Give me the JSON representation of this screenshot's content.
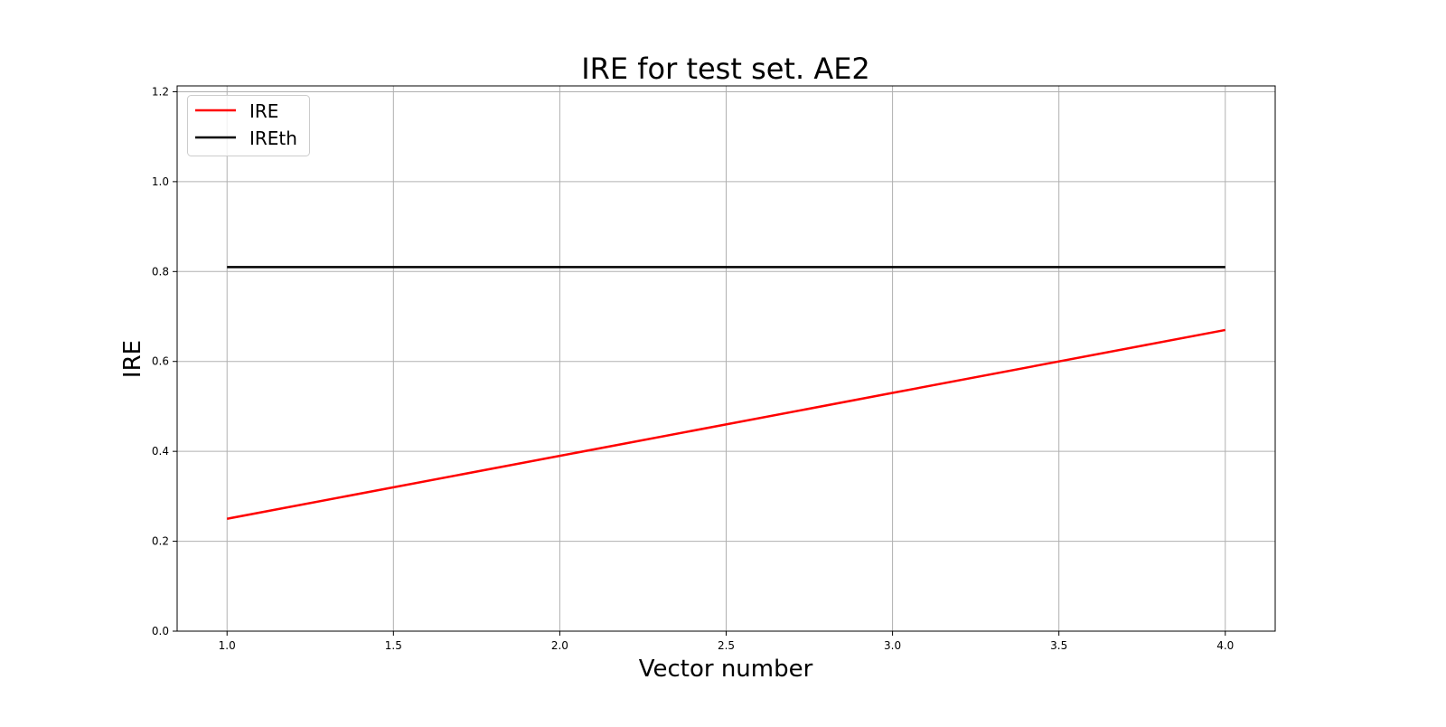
{
  "chart_data": {
    "type": "line",
    "title": "IRE for test set. AE2",
    "xlabel": "Vector number",
    "ylabel": "IRE",
    "xlim": [
      0.85,
      4.15
    ],
    "ylim": [
      0,
      1.213
    ],
    "xticks": [
      1.0,
      1.5,
      2.0,
      2.5,
      3.0,
      3.5,
      4.0
    ],
    "xtick_labels": [
      "1.0",
      "1.5",
      "2.0",
      "2.5",
      "3.0",
      "3.5",
      "4.0"
    ],
    "yticks": [
      0.0,
      0.2,
      0.4,
      0.6,
      0.8,
      1.0,
      1.2
    ],
    "ytick_labels": [
      "0.0",
      "0.2",
      "0.4",
      "0.6",
      "0.8",
      "1.0",
      "1.2"
    ],
    "grid": true,
    "legend_placement": "upper-left",
    "series": [
      {
        "name": "IRE",
        "color": "#ff0000",
        "x": [
          1,
          2,
          3,
          4
        ],
        "y": [
          0.25,
          0.39,
          0.53,
          0.67
        ]
      },
      {
        "name": "IREth",
        "color": "#000000",
        "x": [
          1,
          2,
          3,
          4
        ],
        "y": [
          0.81,
          0.81,
          0.81,
          0.81
        ]
      }
    ]
  }
}
